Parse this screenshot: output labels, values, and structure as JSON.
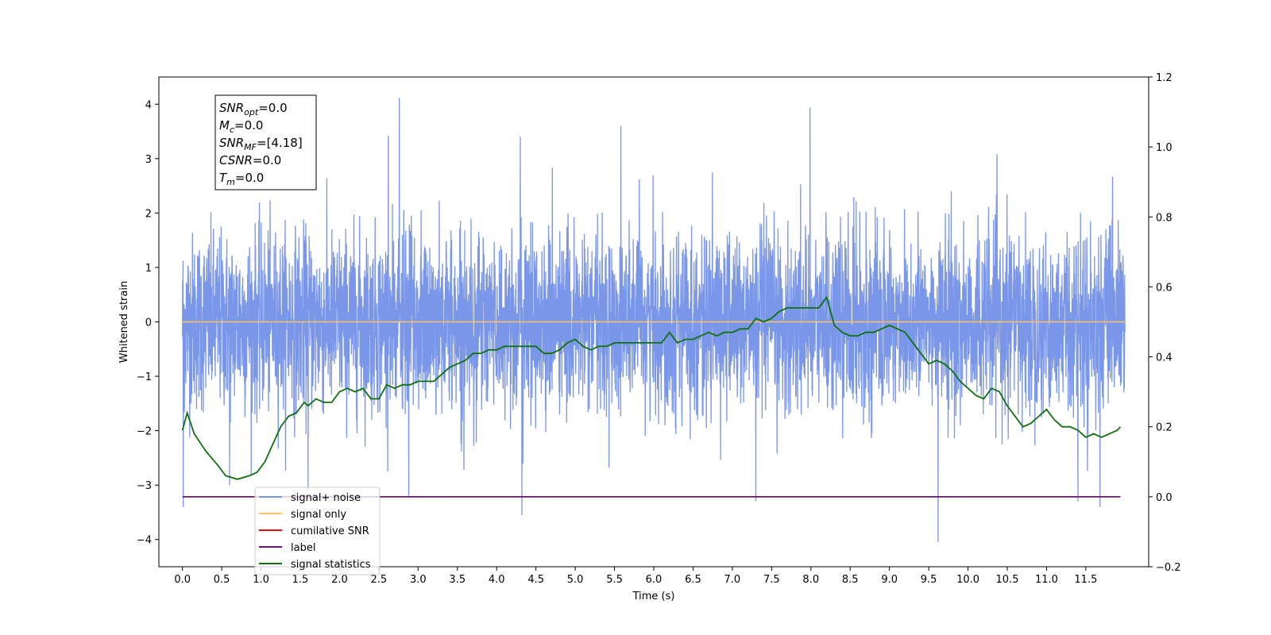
{
  "chart_data": {
    "type": "line",
    "xlabel": "Time (s)",
    "ylabel": "Whitened strain",
    "xlim": [
      -0.3,
      12.3
    ],
    "ylim": [
      -4.5,
      4.5
    ],
    "y2lim": [
      -0.2,
      1.2
    ],
    "xticks": [
      "0.0",
      "0.5",
      "1.0",
      "1.5",
      "2.0",
      "2.5",
      "3.0",
      "3.5",
      "4.0",
      "4.5",
      "5.0",
      "5.5",
      "6.0",
      "6.5",
      "7.0",
      "7.5",
      "8.0",
      "8.5",
      "9.0",
      "9.5",
      "10.0",
      "10.5",
      "11.0",
      "11.5"
    ],
    "yticks": [
      "−4",
      "−3",
      "−2",
      "−1",
      "0",
      "1",
      "2",
      "3",
      "4"
    ],
    "y2ticks": [
      "−0.2",
      "0.0",
      "0.2",
      "0.4",
      "0.6",
      "0.8",
      "1.0",
      "1.2"
    ],
    "legend_position": "lower-left",
    "legend": [
      {
        "label": "signal+ noise",
        "color": "#7a96e8"
      },
      {
        "label": "signal only",
        "color": "#ffc266"
      },
      {
        "label": "cumilative SNR",
        "color": "#e01010"
      },
      {
        "label": "label",
        "color": "#6a1470"
      },
      {
        "label": "signal statistics",
        "color": "#107010"
      }
    ],
    "annotation_lines": [
      {
        "main": "SNR",
        "sub": "opt",
        "rest": "=0.0"
      },
      {
        "main": "M",
        "sub": "c",
        "rest": "=0.0"
      },
      {
        "main": "SNR",
        "sub": "MF",
        "rest": "=[4.18]"
      },
      {
        "main": "CSNR",
        "sub": "",
        "rest": "=0.0"
      },
      {
        "main": "T",
        "sub": "m",
        "rest": "=0.0"
      }
    ],
    "series": [
      {
        "name": "signal+ noise",
        "axis": "left",
        "x_range": [
          0.0,
          12.0
        ],
        "typical_amplitude": 1.3,
        "peak_min": -4.05,
        "peak_max": 4.12,
        "spikes": [
          [
            2.76,
            4.12
          ],
          [
            7.99,
            3.94
          ],
          [
            4.3,
            3.4
          ],
          [
            5.58,
            3.6
          ],
          [
            2.62,
            3.42
          ],
          [
            4.32,
            -3.55
          ],
          [
            9.62,
            -4.05
          ],
          [
            0.6,
            -3.0
          ],
          [
            7.3,
            -3.3
          ],
          [
            0.01,
            -3.4
          ],
          [
            1.6,
            -3.1
          ],
          [
            2.88,
            -3.2
          ],
          [
            11.4,
            -3.3
          ],
          [
            11.68,
            -3.4
          ]
        ]
      },
      {
        "name": "signal only",
        "axis": "left",
        "x": [
          0.0,
          12.0
        ],
        "values": [
          0.0,
          0.0
        ]
      },
      {
        "name": "label",
        "axis": "right",
        "x": [
          0.0,
          11.94
        ],
        "values": [
          0.0,
          0.0
        ]
      },
      {
        "name": "signal statistics",
        "axis": "right",
        "x": [
          0.0,
          0.06,
          0.15,
          0.3,
          0.45,
          0.55,
          0.7,
          0.85,
          0.95,
          1.05,
          1.15,
          1.25,
          1.35,
          1.45,
          1.55,
          1.6,
          1.7,
          1.8,
          1.9,
          2.0,
          2.1,
          2.2,
          2.3,
          2.4,
          2.5,
          2.6,
          2.7,
          2.8,
          2.9,
          3.0,
          3.1,
          3.2,
          3.3,
          3.4,
          3.5,
          3.6,
          3.7,
          3.8,
          3.9,
          4.0,
          4.1,
          4.2,
          4.3,
          4.4,
          4.5,
          4.6,
          4.7,
          4.8,
          4.9,
          5.0,
          5.1,
          5.2,
          5.3,
          5.4,
          5.5,
          5.6,
          5.7,
          5.8,
          5.9,
          6.0,
          6.1,
          6.2,
          6.3,
          6.4,
          6.5,
          6.6,
          6.7,
          6.8,
          6.9,
          7.0,
          7.1,
          7.2,
          7.3,
          7.4,
          7.5,
          7.6,
          7.7,
          7.8,
          7.9,
          8.0,
          8.1,
          8.2,
          8.3,
          8.4,
          8.5,
          8.6,
          8.7,
          8.8,
          8.9,
          9.0,
          9.1,
          9.2,
          9.3,
          9.4,
          9.5,
          9.6,
          9.7,
          9.8,
          9.9,
          10.0,
          10.1,
          10.2,
          10.3,
          10.4,
          10.5,
          10.6,
          10.7,
          10.8,
          10.9,
          11.0,
          11.1,
          11.2,
          11.3,
          11.4,
          11.5,
          11.6,
          11.7,
          11.8,
          11.9,
          11.94
        ],
        "values": [
          0.19,
          0.24,
          0.18,
          0.13,
          0.09,
          0.06,
          0.05,
          0.06,
          0.07,
          0.1,
          0.15,
          0.2,
          0.23,
          0.24,
          0.27,
          0.26,
          0.28,
          0.27,
          0.27,
          0.3,
          0.31,
          0.3,
          0.31,
          0.28,
          0.28,
          0.32,
          0.31,
          0.32,
          0.32,
          0.33,
          0.33,
          0.33,
          0.35,
          0.37,
          0.38,
          0.39,
          0.41,
          0.41,
          0.42,
          0.42,
          0.43,
          0.43,
          0.43,
          0.43,
          0.43,
          0.41,
          0.41,
          0.42,
          0.44,
          0.45,
          0.43,
          0.42,
          0.43,
          0.43,
          0.44,
          0.44,
          0.44,
          0.44,
          0.44,
          0.44,
          0.44,
          0.47,
          0.44,
          0.45,
          0.45,
          0.46,
          0.47,
          0.46,
          0.47,
          0.47,
          0.48,
          0.48,
          0.51,
          0.5,
          0.51,
          0.53,
          0.54,
          0.54,
          0.54,
          0.54,
          0.54,
          0.57,
          0.49,
          0.47,
          0.46,
          0.46,
          0.47,
          0.47,
          0.48,
          0.49,
          0.48,
          0.47,
          0.44,
          0.41,
          0.38,
          0.39,
          0.38,
          0.36,
          0.33,
          0.31,
          0.29,
          0.28,
          0.31,
          0.3,
          0.26,
          0.23,
          0.2,
          0.21,
          0.23,
          0.25,
          0.22,
          0.2,
          0.2,
          0.19,
          0.17,
          0.18,
          0.17,
          0.18,
          0.19,
          0.2
        ]
      }
    ]
  }
}
